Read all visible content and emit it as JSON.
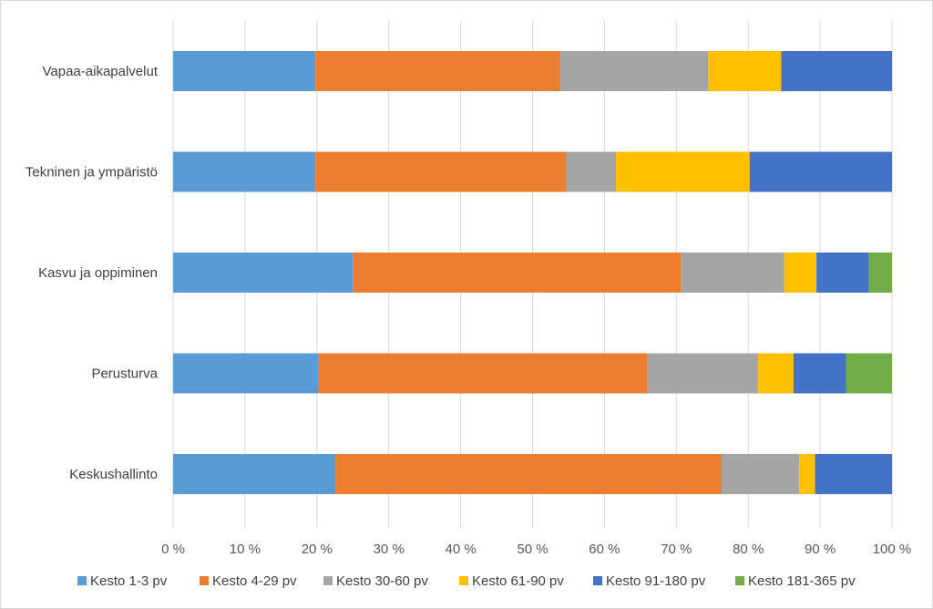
{
  "chart_data": {
    "type": "bar",
    "orientation": "horizontal",
    "stacked": "percent",
    "categories": [
      "Vapaa-aikapalvelut",
      "Tekninen ja ympäristö",
      "Kasvu ja  oppiminen",
      "Perusturva",
      "Keskushallinto"
    ],
    "x_ticks": [
      "0 %",
      "10 %",
      "20 %",
      "30 %",
      "40 %",
      "50 %",
      "60 %",
      "70 %",
      "80 %",
      "90 %",
      "100 %"
    ],
    "xlim": [
      0,
      100
    ],
    "grid": true,
    "legend_position": "bottom",
    "series": [
      {
        "name": "Kesto 1-3 pv",
        "color": "#5b9bd5",
        "values": [
          19.8,
          19.8,
          25.0,
          20.2,
          22.6
        ]
      },
      {
        "name": "Kesto 4-29 pv",
        "color": "#ed7d31",
        "values": [
          34.0,
          34.9,
          45.6,
          45.8,
          53.7
        ]
      },
      {
        "name": "Kesto 30-60 pv",
        "color": "#a5a5a5",
        "values": [
          20.6,
          6.9,
          14.4,
          15.4,
          10.8
        ]
      },
      {
        "name": "Kesto 61-90 pv",
        "color": "#ffc000",
        "values": [
          10.2,
          18.6,
          4.5,
          4.9,
          2.2
        ]
      },
      {
        "name": "Kesto 91-180 pv",
        "color": "#4472c4",
        "values": [
          15.4,
          19.8,
          7.3,
          7.3,
          10.7
        ]
      },
      {
        "name": "Kesto 181-365 pv",
        "color": "#70ad47",
        "values": [
          0,
          0,
          3.2,
          6.4,
          0
        ]
      }
    ]
  }
}
